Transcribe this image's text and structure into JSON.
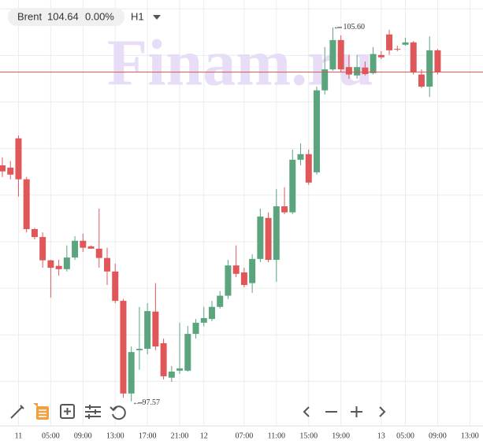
{
  "chart_data": {
    "type": "candlestick",
    "symbol": "Brent",
    "last_price": 104.64,
    "change": "0.00%",
    "timeframe": "H1",
    "watermark": "Finam.ru",
    "high_label": {
      "value": 105.6,
      "label": "105.60"
    },
    "low_label": 97.57,
    "up_color": "#5aa57e",
    "down_color": "#e0575a",
    "price_line_color": "#d9534f",
    "ylim": [
      97.06,
      106.19
    ],
    "grid_lines": [
      98,
      99,
      100,
      101,
      102,
      103,
      104,
      105,
      106
    ],
    "categories": [
      null,
      null,
      "11",
      null,
      null,
      null,
      "05:00",
      null,
      null,
      null,
      "09:00",
      null,
      null,
      null,
      "13:00",
      null,
      null,
      null,
      "17:00",
      null,
      null,
      null,
      "21:00",
      null,
      null,
      "12",
      null,
      null,
      null,
      null,
      "07:00",
      null,
      null,
      null,
      "11:00",
      null,
      null,
      null,
      "15:00",
      null,
      null,
      null,
      "19:00",
      null,
      null,
      null,
      null,
      "13",
      null,
      null,
      "05:00",
      null,
      null,
      null,
      "09:00",
      null,
      null,
      null,
      "13:00"
    ],
    "open": [
      102.64,
      102.59,
      103.22,
      102.34,
      101.27,
      101.1,
      100.6,
      100.48,
      100.41,
      100.66,
      101.02,
      100.9,
      100.85,
      100.65,
      100.36,
      99.73,
      97.74,
      98.67,
      98.7,
      99.5,
      98.82,
      98.08,
      98.23,
      98.23,
      99.02,
      99.26,
      99.34,
      99.6,
      99.84,
      100.49,
      100.34,
      100.11,
      100.63,
      101.51,
      100.61,
      101.76,
      101.63,
      102.76,
      102.88,
      102.49,
      104.25,
      104.7,
      105.33,
      104.75,
      104.57,
      104.74,
      104.62,
      105.01,
      105.45,
      105.14,
      105.23,
      105.28,
      104.59,
      104.33,
      105.11,
      null,
      null,
      null,
      null
    ],
    "high": [
      102.81,
      102.73,
      103.28,
      102.39,
      101.3,
      101.2,
      100.61,
      100.61,
      100.92,
      101.12,
      101.17,
      100.92,
      101.71,
      100.87,
      100.53,
      99.77,
      98.75,
      99.6,
      99.68,
      100.11,
      98.92,
      98.33,
      99.26,
      99.19,
      99.34,
      99.6,
      99.73,
      99.94,
      100.61,
      100.92,
      100.44,
      100.73,
      101.71,
      101.63,
      102.13,
      102.17,
      102.98,
      103.11,
      102.98,
      104.33,
      105.18,
      105.6,
      105.43,
      105.01,
      105.01,
      104.87,
      105.18,
      105.09,
      105.55,
      105.21,
      105.38,
      105.31,
      104.7,
      105.41,
      105.14,
      null,
      null,
      null,
      null
    ],
    "low": [
      102.39,
      102.34,
      101.97,
      101.2,
      101.05,
      100.44,
      99.8,
      100.27,
      100.36,
      100.61,
      100.78,
      100.85,
      100.44,
      100.07,
      99.68,
      97.65,
      97.57,
      98.25,
      98.58,
      98.67,
      98.04,
      97.99,
      98.16,
      98.21,
      98.92,
      99.18,
      99.29,
      99.56,
      99.77,
      100.24,
      100.02,
      99.9,
      100.56,
      100.56,
      100.14,
      101.59,
      101.59,
      102.64,
      102.22,
      102.44,
      104.16,
      104.67,
      104.64,
      104.5,
      104.5,
      104.57,
      104.59,
      104.92,
      105.01,
      105.09,
      105.21,
      104.59,
      104.3,
      104.11,
      104.59,
      null,
      null,
      null,
      null
    ],
    "close": [
      102.51,
      102.44,
      102.34,
      101.27,
      101.1,
      100.6,
      100.44,
      100.41,
      100.66,
      101.02,
      100.87,
      100.85,
      100.65,
      100.36,
      99.73,
      97.74,
      98.63,
      98.7,
      99.51,
      98.75,
      98.11,
      98.21,
      98.28,
      99.02,
      99.26,
      99.36,
      99.6,
      99.84,
      100.49,
      100.31,
      100.07,
      100.63,
      101.54,
      100.61,
      101.76,
      101.63,
      102.76,
      102.88,
      102.27,
      104.25,
      104.7,
      105.33,
      104.7,
      104.59,
      104.75,
      104.6,
      105.03,
      104.96,
      105.11,
      105.13,
      105.28,
      104.64,
      104.33,
      105.11,
      104.64,
      null,
      null,
      null,
      null
    ]
  }
}
